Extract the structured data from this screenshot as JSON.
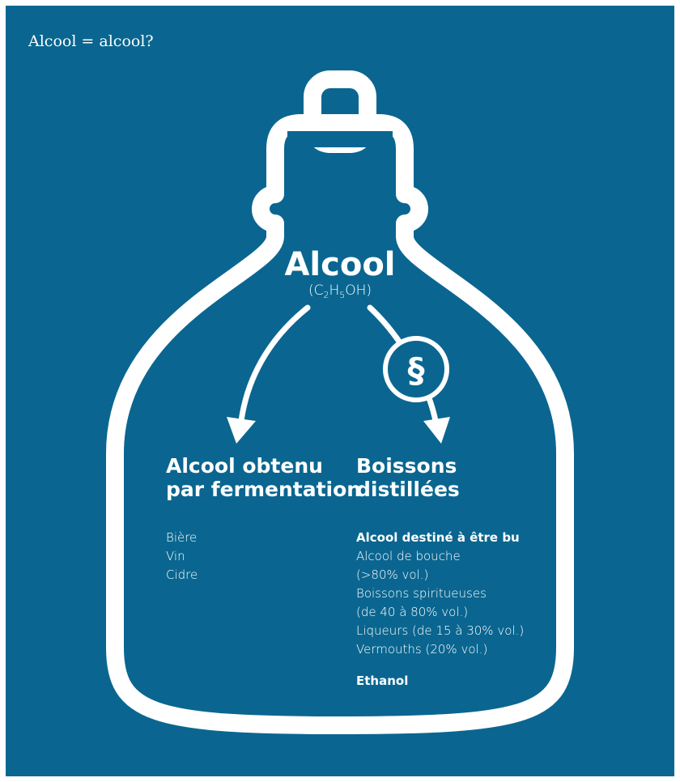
{
  "title": "Alcool = alcool?",
  "center": {
    "label": "Alcool",
    "formula": [
      "(C",
      "2",
      "H",
      "5",
      "OH)"
    ]
  },
  "law_symbol": "§",
  "left": {
    "heading": [
      "Alcool obtenu",
      "par fermentation"
    ],
    "items": [
      "Bière",
      "Vin",
      "Cidre"
    ]
  },
  "right": {
    "heading": [
      "Boissons",
      "distillées"
    ],
    "subheading": "Alcool destiné à être bu",
    "items": [
      "Alcool de bouche",
      "(>80% vol.)",
      "Boissons spiritueuses",
      "(de 40 à 80% vol.)",
      "Liqueurs (de 15 à 30% vol.)",
      "Vermouths (20% vol.)"
    ],
    "footer": "Ethanol"
  }
}
